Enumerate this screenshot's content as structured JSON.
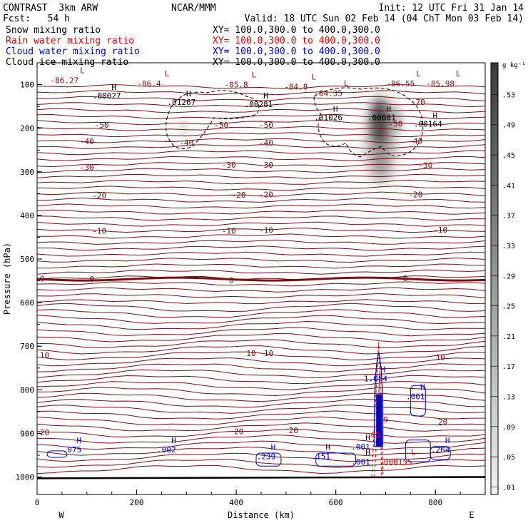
{
  "header": {
    "left1": "CONTRAST  3km ARW",
    "center1": "NCAR/MMM",
    "right1": "Init: 12 UTC Fri 31 Jan 14",
    "left2": "Fcst:   54 h",
    "right2": "Valid: 18 UTC Sun 02 Feb 14 (04 ChT Mon 03 Feb 14)"
  },
  "legend": [
    {
      "label": "Snow mixing ratio",
      "xy": "XY= 100.0,300.0 to 400.0,300.0",
      "color": "#000000"
    },
    {
      "label": "Rain water mixing ratio",
      "xy": "XY= 100.0,300.0 to 400.0,300.0",
      "color": "#e00000"
    },
    {
      "label": "Cloud water mixing ratio",
      "xy": "XY= 100.0,300.0 to 400.0,300.0",
      "color": "#0000cc"
    },
    {
      "label": "Cloud ice mixing ratio",
      "xy": "XY= 100.0,300.0 to 400.0,300.0",
      "color": "#000000"
    }
  ],
  "colors": {
    "temp": "#7a1010",
    "rain": "#e00000",
    "cloud_water": "#0000cc",
    "ice": "#000000",
    "terrain": "#000000"
  },
  "chart_data": {
    "type": "cross-section",
    "xlabel": "Distance (km)",
    "ylabel": "Pressure (hPa)",
    "xlim": [
      0,
      900
    ],
    "ylim": [
      1040,
      50
    ],
    "xticks": [
      0,
      200,
      400,
      600,
      800
    ],
    "yticks": [
      100,
      200,
      300,
      400,
      500,
      600,
      700,
      800,
      900,
      1000
    ],
    "x_end_labels": {
      "left": "W",
      "right": "E"
    },
    "colorbar": {
      "unit": "g kg⁻¹",
      "labels": [
        ".53",
        ".49",
        ".45",
        ".41",
        ".37",
        ".33",
        ".29",
        ".25",
        ".21",
        ".17",
        ".13",
        ".09",
        ".05",
        ".01"
      ]
    },
    "temperature_labels": [
      {
        "x": 10,
        "p": 545,
        "text": "0"
      },
      {
        "x": 110,
        "p": 546,
        "text": "0"
      },
      {
        "x": 390,
        "p": 548,
        "text": "0"
      },
      {
        "x": 740,
        "p": 544,
        "text": "0"
      },
      {
        "x": 15,
        "p": 720,
        "text": "10"
      },
      {
        "x": 430,
        "p": 716,
        "text": "10"
      },
      {
        "x": 465,
        "p": 716,
        "text": "10"
      },
      {
        "x": 810,
        "p": 725,
        "text": "10"
      },
      {
        "x": 15,
        "p": 898,
        "text": "20"
      },
      {
        "x": 405,
        "p": 895,
        "text": "20"
      },
      {
        "x": 515,
        "p": 893,
        "text": "20"
      },
      {
        "x": 815,
        "p": 873,
        "text": "20"
      },
      {
        "x": 125,
        "p": 435,
        "text": "-10"
      },
      {
        "x": 385,
        "p": 435,
        "text": "-10"
      },
      {
        "x": 460,
        "p": 434,
        "text": "-10"
      },
      {
        "x": 810,
        "p": 433,
        "text": "-10"
      },
      {
        "x": 125,
        "p": 354,
        "text": "-20"
      },
      {
        "x": 405,
        "p": 353,
        "text": "-20"
      },
      {
        "x": 460,
        "p": 352,
        "text": "-20"
      },
      {
        "x": 760,
        "p": 352,
        "text": "-20"
      },
      {
        "x": 100,
        "p": 290,
        "text": "-30"
      },
      {
        "x": 385,
        "p": 284,
        "text": "-30"
      },
      {
        "x": 460,
        "p": 284,
        "text": "-30"
      },
      {
        "x": 780,
        "p": 285,
        "text": "-30"
      },
      {
        "x": 100,
        "p": 230,
        "text": "-40"
      },
      {
        "x": 300,
        "p": 233,
        "text": "-40"
      },
      {
        "x": 460,
        "p": 233,
        "text": "-40"
      },
      {
        "x": 760,
        "p": 229,
        "text": "-40"
      },
      {
        "x": 130,
        "p": 192,
        "text": "-50"
      },
      {
        "x": 370,
        "p": 192,
        "text": "-50"
      },
      {
        "x": 460,
        "p": 192,
        "text": "-50"
      },
      {
        "x": 720,
        "p": 190,
        "text": "-50"
      },
      {
        "x": 765,
        "p": 140,
        "text": "-70"
      }
    ],
    "lows": [
      {
        "x": 55,
        "p": 80,
        "text": "-86.27"
      },
      {
        "x": 225,
        "p": 88,
        "text": "-86.4"
      },
      {
        "x": 400,
        "p": 90,
        "text": "-85.8"
      },
      {
        "x": 520,
        "p": 95,
        "text": "-84.8"
      },
      {
        "x": 585,
        "p": 110,
        "text": "-84.35"
      },
      {
        "x": 730,
        "p": 88,
        "text": "-86.55"
      },
      {
        "x": 810,
        "p": 88,
        "text": "-85.98"
      },
      {
        "x": 720,
        "p": 955,
        "text": ".000155"
      }
    ],
    "highs": [
      {
        "x": 140,
        "p": 125,
        "text": ".00027"
      },
      {
        "x": 290,
        "p": 140,
        "text": ".01267"
      },
      {
        "x": 445,
        "p": 145,
        "text": ".00281"
      },
      {
        "x": 585,
        "p": 175,
        "text": ".01026"
      },
      {
        "x": 692,
        "p": 175,
        "text": ".00681"
      },
      {
        "x": 785,
        "p": 190,
        "text": ".00164"
      }
    ],
    "cloud_water_labels": [
      {
        "x": 70,
        "p": 940,
        "text": ".075"
      },
      {
        "x": 260,
        "p": 940,
        "text": ".002"
      },
      {
        "x": 460,
        "p": 956,
        "text": ".239"
      },
      {
        "x": 570,
        "p": 956,
        "text": ".151"
      },
      {
        "x": 650,
        "p": 934,
        "text": ".001"
      },
      {
        "x": 650,
        "p": 968,
        "text": ".001"
      },
      {
        "x": 680,
        "p": 777,
        "text": "1.054"
      },
      {
        "x": 760,
        "p": 818,
        "text": ".001"
      },
      {
        "x": 810,
        "p": 940,
        "text": ".264"
      }
    ],
    "rain_labels": [
      {
        "x": 675,
        "p": 903,
        "text": ".00"
      },
      {
        "x": 700,
        "p": 868,
        "text": "9"
      }
    ]
  }
}
